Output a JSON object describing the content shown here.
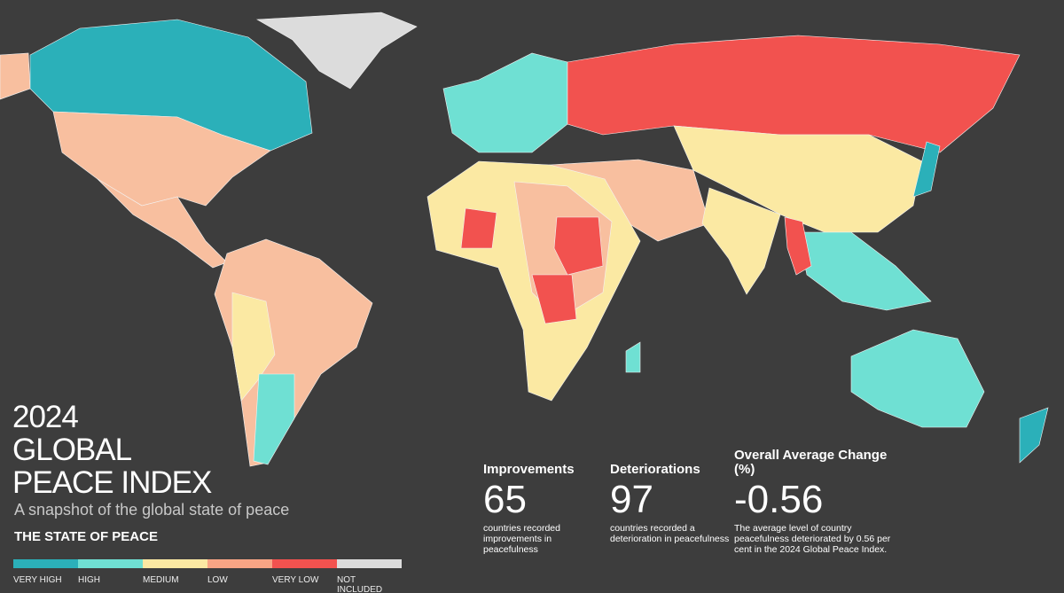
{
  "header": {
    "title_lines": [
      "2024",
      "GLOBAL",
      "PEACE INDEX"
    ],
    "subtitle": "A snapshot of the global state of peace"
  },
  "legend": {
    "title": "THE STATE OF PEACE",
    "items": [
      {
        "label": "VERY HIGH",
        "color": "#2bb0b9"
      },
      {
        "label": "HIGH",
        "color": "#6fe0d3"
      },
      {
        "label": "MEDIUM",
        "color": "#fbe9a3"
      },
      {
        "label": "LOW",
        "color": "#f8a585"
      },
      {
        "label": "VERY LOW",
        "color": "#f2524f"
      },
      {
        "label": "NOT INCLUDED",
        "color": "#dcdcdc"
      }
    ]
  },
  "stats": [
    {
      "heading": "Improvements",
      "value": 65,
      "description": "countries recorded improvements in peacefulness"
    },
    {
      "heading": "Deteriorations",
      "value": 97,
      "description": "countries recorded a deterioration in peacefulness"
    },
    {
      "heading": "Overall Average Change (%)",
      "value": -0.56,
      "description": "The average level of country peacefulness deteriorated by 0.56 per cent in the 2024 Global Peace Index."
    }
  ]
}
